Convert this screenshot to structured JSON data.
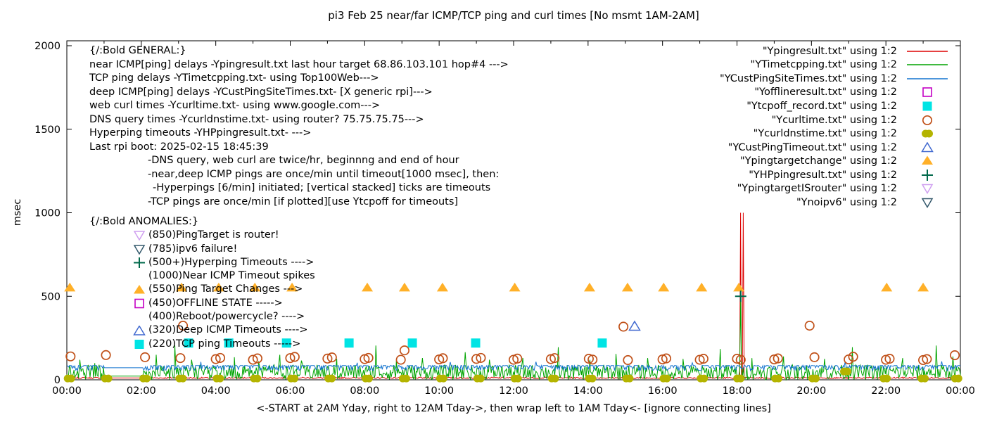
{
  "chart_data": {
    "type": "line",
    "title": "pi3 Feb 25  near/far ICMP/TCP ping and curl times [No msmt 1AM-2AM]",
    "xlabel": "<-START at 2AM Yday, right to 12AM Tday->, then wrap left to 1AM Tday<- [ignore connecting lines]",
    "ylabel": "msec",
    "ylim": [
      0,
      2000
    ],
    "xlim_hours": [
      0,
      24
    ],
    "y_ticks": [
      0,
      500,
      1000,
      1500,
      2000
    ],
    "x_ticks": [
      "00:00",
      "02:00",
      "04:00",
      "06:00",
      "08:00",
      "10:00",
      "12:00",
      "14:00",
      "16:00",
      "18:00",
      "20:00",
      "22:00",
      "00:00"
    ],
    "x_minor_ticks_per_hour": 1,
    "grid": false,
    "legend_position": "top-right-inside",
    "no_measurement_gap_hours": [
      1.0,
      2.05
    ],
    "series": [
      {
        "legend_label": "\"Ypingresult.txt\" using 1:2",
        "color": "#dd0000",
        "kind": "noise-line",
        "noise_mode": "low",
        "base": 7,
        "amp": 9,
        "flat_value": 11,
        "spikes": [
          [
            18.096,
            1000
          ],
          [
            18.168,
            1000
          ]
        ]
      },
      {
        "legend_label": "\"YTimetcpping.txt\" using 1:2",
        "color": "#00a400",
        "kind": "noise-line",
        "noise_mode": "bottom",
        "base": 0,
        "amp": 90,
        "flat_value": 22,
        "spikes": [
          [
            0.35,
            120
          ],
          [
            0.75,
            100
          ],
          [
            2.4,
            150
          ],
          [
            2.9,
            205
          ],
          [
            3.35,
            120
          ],
          [
            4.5,
            135
          ],
          [
            5.15,
            110
          ],
          [
            5.72,
            150
          ],
          [
            6.3,
            115
          ],
          [
            7.25,
            125
          ],
          [
            8.3,
            205
          ],
          [
            8.85,
            115
          ],
          [
            9.55,
            130
          ],
          [
            10.7,
            165
          ],
          [
            11.35,
            120
          ],
          [
            12.25,
            130
          ],
          [
            13.2,
            195
          ],
          [
            14.05,
            120
          ],
          [
            14.75,
            155
          ],
          [
            15.6,
            130
          ],
          [
            16.55,
            125
          ],
          [
            17.55,
            185
          ],
          [
            18.1,
            500
          ],
          [
            18.4,
            130
          ],
          [
            19.25,
            140
          ],
          [
            20.35,
            125
          ],
          [
            21.1,
            195
          ],
          [
            22.45,
            130
          ],
          [
            23.35,
            205
          ],
          [
            23.8,
            140
          ]
        ]
      },
      {
        "legend_label": "\"YCustPingSiteTimes.txt\" using 1:2",
        "color": "#1273cf",
        "kind": "noise-line",
        "noise_mode": "topline",
        "base": 85,
        "amp": 30,
        "flat_value": 72,
        "spikes": [
          [
            3.6,
            108
          ],
          [
            7.8,
            102
          ],
          [
            10.3,
            106
          ],
          [
            12.6,
            108
          ],
          [
            16.8,
            102
          ],
          [
            20.9,
            105
          ],
          [
            23.5,
            110
          ]
        ]
      },
      {
        "legend_label": "\"Yofflineresult.txt\" using 1:2",
        "color": "#c400c4",
        "kind": "marker",
        "marker": "square-open",
        "points": []
      },
      {
        "legend_label": "\"Ytcpoff_record.txt\" using 1:2",
        "color": "#00e4e4",
        "kind": "marker",
        "marker": "square-filled",
        "points": [
          [
            3.27,
            220
          ],
          [
            4.35,
            220
          ],
          [
            5.9,
            220
          ],
          [
            7.58,
            220
          ],
          [
            9.28,
            220
          ],
          [
            10.98,
            220
          ],
          [
            14.38,
            220
          ]
        ]
      },
      {
        "legend_label": "\"Ycurltime.txt\" using 1:2",
        "color": "#c05018",
        "kind": "marker",
        "marker": "circle-open",
        "points": [
          [
            0.1,
            140
          ],
          [
            1.05,
            148
          ],
          [
            2.1,
            135
          ],
          [
            3.05,
            130
          ],
          [
            3.12,
            324
          ],
          [
            4.0,
            124
          ],
          [
            4.12,
            131
          ],
          [
            5.0,
            120
          ],
          [
            5.12,
            128
          ],
          [
            6.0,
            130
          ],
          [
            6.12,
            137
          ],
          [
            7.0,
            127
          ],
          [
            7.12,
            134
          ],
          [
            8.0,
            124
          ],
          [
            8.1,
            131
          ],
          [
            8.97,
            120
          ],
          [
            9.07,
            176
          ],
          [
            10.0,
            122
          ],
          [
            10.1,
            129
          ],
          [
            11.0,
            125
          ],
          [
            11.12,
            131
          ],
          [
            12.0,
            120
          ],
          [
            12.1,
            127
          ],
          [
            13.0,
            124
          ],
          [
            13.1,
            130
          ],
          [
            14.02,
            126
          ],
          [
            14.12,
            121
          ],
          [
            14.95,
            318
          ],
          [
            15.07,
            118
          ],
          [
            16.0,
            122
          ],
          [
            16.1,
            128
          ],
          [
            17.0,
            120
          ],
          [
            17.1,
            126
          ],
          [
            18.0,
            126
          ],
          [
            18.1,
            120
          ],
          [
            19.0,
            122
          ],
          [
            19.1,
            128
          ],
          [
            19.95,
            324
          ],
          [
            20.08,
            135
          ],
          [
            21.0,
            122
          ],
          [
            21.12,
            138
          ],
          [
            22.0,
            120
          ],
          [
            22.1,
            126
          ],
          [
            23.0,
            118
          ],
          [
            23.1,
            124
          ],
          [
            23.85,
            147
          ]
        ]
      },
      {
        "legend_label": "\"Ycurldnstime.txt\" using 1:2",
        "color": "#b4b400",
        "kind": "marker",
        "marker": "dot-double",
        "points": [
          [
            0.07,
            8
          ],
          [
            1.07,
            8
          ],
          [
            2.1,
            8
          ],
          [
            3.07,
            8
          ],
          [
            4.07,
            8
          ],
          [
            5.07,
            8
          ],
          [
            6.07,
            8
          ],
          [
            7.07,
            8
          ],
          [
            8.07,
            8
          ],
          [
            9.07,
            8
          ],
          [
            10.07,
            8
          ],
          [
            11.07,
            8
          ],
          [
            12.07,
            8
          ],
          [
            13.07,
            8
          ],
          [
            14.07,
            8
          ],
          [
            15.07,
            8
          ],
          [
            16.07,
            8
          ],
          [
            17.07,
            8
          ],
          [
            18.05,
            8
          ],
          [
            19.07,
            8
          ],
          [
            20.07,
            8
          ],
          [
            20.92,
            50
          ],
          [
            21.98,
            8
          ],
          [
            23.0,
            8
          ],
          [
            23.9,
            8
          ]
        ]
      },
      {
        "legend_label": "\"YCustPingTimeout.txt\" using 1:2",
        "color": "#4169d0",
        "kind": "marker",
        "marker": "triangle-open",
        "points": [
          [
            15.25,
            320
          ]
        ]
      },
      {
        "legend_label": "\"Ypingtargetchange\" using 1:2",
        "color": "#ffb028",
        "kind": "marker",
        "marker": "triangle-filled",
        "points": [
          [
            0.08,
            550
          ],
          [
            3.08,
            550
          ],
          [
            4.08,
            550
          ],
          [
            5.05,
            550
          ],
          [
            6.05,
            550
          ],
          [
            8.07,
            550
          ],
          [
            9.07,
            550
          ],
          [
            10.09,
            550
          ],
          [
            12.03,
            550
          ],
          [
            14.04,
            550
          ],
          [
            15.06,
            550
          ],
          [
            16.03,
            550
          ],
          [
            17.05,
            550
          ],
          [
            18.05,
            550
          ],
          [
            22.02,
            550
          ],
          [
            23.0,
            550
          ]
        ]
      },
      {
        "legend_label": "\"YHPpingresult.txt\" using 1:2",
        "color": "#00694b",
        "kind": "marker",
        "marker": "plus",
        "points": [
          [
            18.1,
            500
          ]
        ]
      },
      {
        "legend_label": "\"YpingtargetISrouter\" using 1:2",
        "color": "#cf9ff0",
        "kind": "marker",
        "marker": "triangle-down-open",
        "points": []
      },
      {
        "legend_label": "\"Ynoipv6\" using 1:2",
        "color": "#33586b",
        "kind": "marker",
        "marker": "triangle-down-open",
        "points": []
      }
    ]
  },
  "annotations": {
    "general": {
      "header": "{/:Bold GENERAL:}",
      "lines": [
        {
          "text": "near ICMP[ping] delays -Ypingresult.txt last hour target 68.86.103.101 hop#4 --->",
          "indent": 0
        },
        {
          "text": "TCP ping delays -YTimetcpping.txt- using Top100Web--->",
          "indent": 0
        },
        {
          "text": "deep ICMP[ping] delays -YCustPingSiteTimes.txt- [X generic rpi]--->",
          "indent": 0
        },
        {
          "text": "web curl times -Ycurltime.txt- using www.google.com--->",
          "indent": 0
        },
        {
          "text": "DNS query times -Ycurldnstime.txt- using router? 75.75.75.75--->",
          "indent": 0
        },
        {
          "text": "Hyperping timeouts -YHPpingresult.txt- --->",
          "indent": 0
        },
        {
          "text": "Last rpi boot: 2025-02-15 18:45:39",
          "indent": 0
        },
        {
          "text": "-DNS query, web curl are twice/hr, beginnng and end of hour",
          "indent": 83
        },
        {
          "text": "-near,deep ICMP pings are once/min until timeout[1000 msec], then:",
          "indent": 83
        },
        {
          "text": "-Hyperpings [6/min] initiated; [vertical stacked] ticks are timeouts",
          "indent": 90
        },
        {
          "text": "-TCP pings are once/min [if plotted][use Ytcpoff for timeouts]",
          "indent": 83
        }
      ]
    },
    "anomalies": {
      "header": "{/:Bold ANOMALIES:}",
      "items": [
        {
          "marker": "triangle-down-open",
          "color": "#cf9ff0",
          "text": "(850)PingTarget is router!"
        },
        {
          "marker": "triangle-down-open",
          "color": "#33586b",
          "text": "(785)ipv6 failure!"
        },
        {
          "marker": "plus",
          "color": "#00694b",
          "text": "(500+)Hyperping Timeouts ---->"
        },
        {
          "marker": null,
          "color": null,
          "text": "(1000)Near ICMP Timeout spikes"
        },
        {
          "marker": "triangle-filled",
          "color": "#ffb028",
          "text": "(550)Ping Target Changes --->"
        },
        {
          "marker": "square-open",
          "color": "#c400c4",
          "text": "(450)OFFLINE STATE ----->"
        },
        {
          "marker": null,
          "color": null,
          "text": "(400)Reboot/powercycle? ---->"
        },
        {
          "marker": "triangle-open",
          "color": "#4169d0",
          "text": "(320)Deep ICMP Timeouts ---->"
        },
        {
          "marker": "square-filled",
          "color": "#00e4e4",
          "text": "(220)TCP ping Timeouts ----->"
        }
      ]
    }
  },
  "colors": {
    "background": "#ffffff",
    "axis": "#000000",
    "text": "#000000"
  }
}
